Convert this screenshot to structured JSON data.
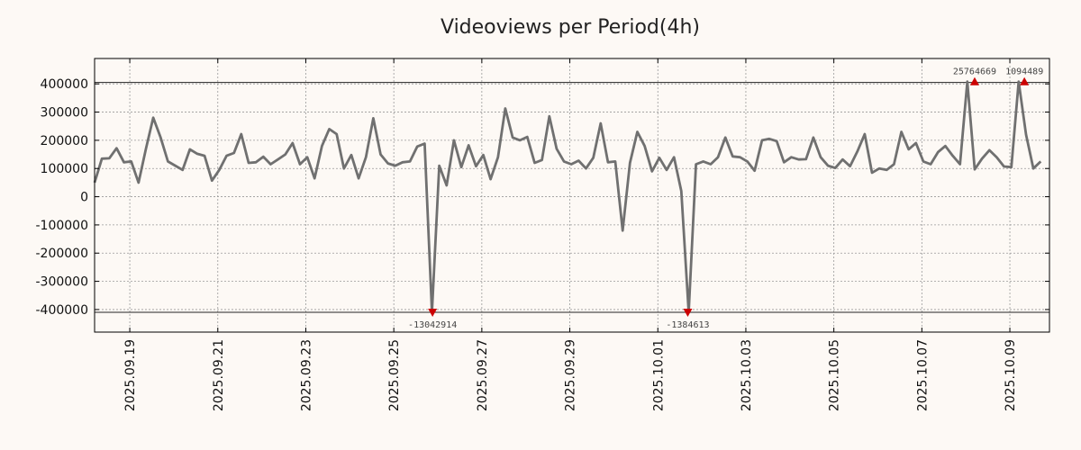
{
  "chart_data": {
    "type": "line",
    "title": "Videoviews per Period(4h)",
    "xlabel": "",
    "ylabel": "",
    "ylim": [
      -480000,
      490000
    ],
    "xlim": [
      -0.3,
      21.4
    ],
    "grid": true,
    "y_ticks": [
      400000,
      300000,
      200000,
      100000,
      0,
      -100000,
      -200000,
      -300000,
      -400000
    ],
    "y_tick_labels": [
      "400000",
      "300000",
      "200000",
      "100000",
      "0",
      "-100000",
      "-200000",
      "-300000",
      "-400000"
    ],
    "x_tick_positions": [
      0.5,
      2.5,
      4.5,
      6.5,
      8.5,
      10.5,
      12.5,
      14.5,
      16.5,
      18.5,
      20.5
    ],
    "x_tick_labels": [
      "2025.09.19",
      "2025.09.21",
      "2025.09.23",
      "2025.09.25",
      "2025.09.27",
      "2025.09.29",
      "2025.10.01",
      "2025.10.03",
      "2025.10.05",
      "2025.10.07",
      "2025.10.09"
    ],
    "clip_lines": [
      405000,
      -410000
    ],
    "series": [
      {
        "name": "Videoviews",
        "color": "#707070",
        "x_start": -0.3,
        "x_step": 0.16667,
        "values": [
          50000,
          135000,
          136000,
          172000,
          122000,
          125000,
          50000,
          170000,
          280000,
          210000,
          125000,
          110000,
          95000,
          168000,
          152000,
          145000,
          57000,
          95000,
          145000,
          155000,
          222000,
          120000,
          122000,
          142000,
          115000,
          132000,
          150000,
          190000,
          115000,
          140000,
          65000,
          180000,
          240000,
          222000,
          100000,
          148000,
          65000,
          140000,
          278000,
          150000,
          118000,
          110000,
          122000,
          125000,
          178000,
          188000,
          -410000,
          110000,
          40000,
          200000,
          105000,
          182000,
          108000,
          148000,
          62000,
          140000,
          313000,
          210000,
          200000,
          212000,
          120000,
          130000,
          285000,
          170000,
          125000,
          115000,
          128000,
          100000,
          138000,
          260000,
          122000,
          125000,
          -120000,
          120000,
          230000,
          180000,
          90000,
          138000,
          95000,
          140000,
          20000,
          -410000,
          115000,
          125000,
          115000,
          140000,
          210000,
          143000,
          140000,
          125000,
          92000,
          200000,
          205000,
          197000,
          122000,
          140000,
          132000,
          133000,
          210000,
          140000,
          110000,
          102000,
          132000,
          108000,
          160000,
          222000,
          85000,
          100000,
          95000,
          115000,
          230000,
          168000,
          190000,
          125000,
          115000,
          158000,
          180000,
          145000,
          115000,
          408000,
          97000,
          135000,
          165000,
          140000,
          107000,
          105000,
          408000,
          220000,
          100000,
          125000
        ]
      }
    ],
    "annotations": [
      {
        "label": "-13042914",
        "x": 7.38,
        "y": -410000,
        "dir": "down"
      },
      {
        "label": "-1384613",
        "x": 13.18,
        "y": -410000,
        "dir": "down"
      },
      {
        "label": "25764669",
        "x": 19.7,
        "y": 408000,
        "dir": "up"
      },
      {
        "label": "1094489",
        "x": 20.83,
        "y": 408000,
        "dir": "up"
      }
    ],
    "marker_color": "#cc0000"
  }
}
